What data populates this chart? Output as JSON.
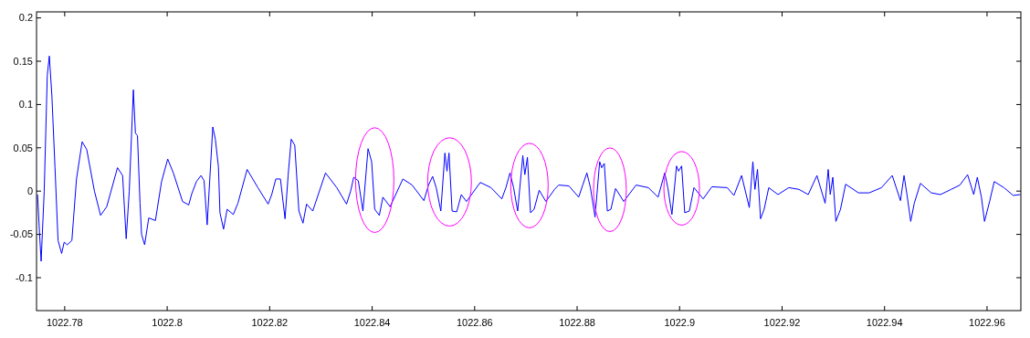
{
  "chart_data": {
    "type": "line",
    "x": [
      1022.7747,
      1022.7751,
      1022.7754,
      1022.776,
      1022.7766,
      1022.777,
      1022.7775,
      1022.7781,
      1022.7787,
      1022.7794,
      1022.7799,
      1022.7805,
      1022.7814,
      1022.7823,
      1022.7834,
      1022.7843,
      1022.7858,
      1022.787,
      1022.7882,
      1022.7903,
      1022.7913,
      1022.792,
      1022.7926,
      1022.7934,
      1022.7938,
      1022.7942,
      1022.7947,
      1022.795,
      1022.7956,
      1022.7964,
      1022.7977,
      1022.7989,
      1022.8001,
      1022.8012,
      1022.803,
      1022.8042,
      1022.8048,
      1022.8057,
      1022.8066,
      1022.8072,
      1022.8078,
      1022.8089,
      1022.8094,
      1022.81,
      1022.8103,
      1022.811,
      1022.8117,
      1022.8129,
      1022.8138,
      1022.8156,
      1022.8177,
      1022.8197,
      1022.8204,
      1022.8212,
      1022.8221,
      1022.823,
      1022.8236,
      1022.8242,
      1022.8249,
      1022.8257,
      1022.8265,
      1022.8272,
      1022.8284,
      1022.8309,
      1022.8331,
      1022.835,
      1022.8358,
      1022.8364,
      1022.8373,
      1022.8382,
      1022.8392,
      1022.8399,
      1022.8405,
      1022.8414,
      1022.8421,
      1022.8435,
      1022.846,
      1022.8478,
      1022.8501,
      1022.851,
      1022.8518,
      1022.8525,
      1022.8534,
      1022.8542,
      1022.8546,
      1022.855,
      1022.8556,
      1022.8565,
      1022.8574,
      1022.8584,
      1022.8611,
      1022.8632,
      1022.8653,
      1022.8661,
      1022.8669,
      1022.8676,
      1022.8684,
      1022.8694,
      1022.8698,
      1022.8703,
      1022.8709,
      1022.8716,
      1022.8726,
      1022.8739,
      1022.8756,
      1022.8764,
      1022.8784,
      1022.8803,
      1022.8811,
      1022.8819,
      1022.8826,
      1022.8835,
      1022.8844,
      1022.8848,
      1022.8853,
      1022.8859,
      1022.8866,
      1022.8875,
      1022.8891,
      1022.8915,
      1022.8939,
      1022.8958,
      1022.8971,
      1022.8977,
      1022.8985,
      1022.8994,
      1022.8998,
      1022.9004,
      1022.901,
      1022.9019,
      1022.9028,
      1022.9046,
      1022.9063,
      1022.9093,
      1022.9106,
      1022.9121,
      1022.9136,
      1022.9143,
      1022.9147,
      1022.9152,
      1022.9158,
      1022.9165,
      1022.9174,
      1022.9192,
      1022.9213,
      1022.9233,
      1022.9251,
      1022.9268,
      1022.9284,
      1022.929,
      1022.9294,
      1022.9299,
      1022.9305,
      1022.9314,
      1022.9324,
      1022.9349,
      1022.937,
      1022.9394,
      1022.9415,
      1022.9431,
      1022.9438,
      1022.9444,
      1022.9451,
      1022.9458,
      1022.947,
      1022.9491,
      1022.9509,
      1022.953,
      1022.9547,
      1022.9562,
      1022.9574,
      1022.9581,
      1022.9589,
      1022.9595,
      1022.9605,
      1022.9614,
      1022.9633,
      1022.9651,
      1022.9665
    ],
    "series": [
      {
        "color": "#0000ff",
        "values": [
          -0.004,
          -0.05,
          -0.081,
          0,
          0.134,
          0.156,
          0.11,
          0.028,
          -0.057,
          -0.072,
          -0.059,
          -0.062,
          -0.057,
          0.014,
          0.057,
          0.048,
          0,
          -0.028,
          -0.018,
          0.027,
          0.018,
          -0.055,
          0,
          0.117,
          0.067,
          0.064,
          -0.014,
          -0.05,
          -0.062,
          -0.031,
          -0.034,
          0.011,
          0.037,
          0.021,
          -0.012,
          -0.016,
          -0.003,
          0.011,
          0.018,
          0.012,
          -0.039,
          0.074,
          0.06,
          0.028,
          -0.025,
          -0.044,
          -0.021,
          -0.027,
          -0.014,
          0.025,
          0.004,
          -0.015,
          -0.004,
          0.014,
          0.014,
          -0.032,
          0.018,
          0.06,
          0.053,
          -0.023,
          -0.037,
          -0.015,
          -0.023,
          0.021,
          0.004,
          -0.015,
          0,
          0.016,
          0.012,
          -0.023,
          0.049,
          0.034,
          -0.021,
          -0.028,
          -0.007,
          -0.018,
          0.014,
          0.007,
          -0.011,
          0.007,
          0.017,
          0.004,
          -0.023,
          0.044,
          0.023,
          0.044,
          -0.023,
          -0.024,
          -0.004,
          -0.012,
          0.01,
          0.004,
          -0.009,
          0.004,
          0.021,
          0.004,
          -0.023,
          0.041,
          0.019,
          0.039,
          -0.025,
          -0.021,
          0.001,
          -0.012,
          0.002,
          0.007,
          0.006,
          -0.007,
          0.007,
          0.021,
          0.004,
          -0.03,
          0.034,
          0.027,
          0.032,
          -0.023,
          -0.021,
          0.003,
          -0.012,
          0.007,
          0.004,
          -0.007,
          0.021,
          0.004,
          -0.027,
          0.029,
          0.023,
          0.029,
          -0.025,
          -0.023,
          0.004,
          -0.009,
          0.005,
          0.004,
          -0.005,
          0.018,
          -0.019,
          0.034,
          0.002,
          0.025,
          -0.032,
          -0.021,
          0.004,
          -0.004,
          0.004,
          0.002,
          -0.004,
          0.018,
          -0.014,
          0.025,
          -0.004,
          0.016,
          -0.035,
          -0.021,
          0.008,
          -0.002,
          -0.002,
          0.004,
          0.018,
          -0.011,
          0.018,
          -0.005,
          -0.035,
          -0.014,
          0.009,
          -0.002,
          -0.004,
          0.002,
          0.007,
          0.019,
          -0.004,
          0.016,
          -0.007,
          -0.035,
          -0.012,
          0.011,
          0.004,
          -0.005,
          -0.004
        ]
      }
    ],
    "xlim": [
      1022.7745,
      1022.9666
    ],
    "xticks": [
      1022.78,
      1022.8,
      1022.82,
      1022.84,
      1022.86,
      1022.88,
      1022.9,
      1022.92,
      1022.94,
      1022.96
    ],
    "ylim": [
      -0.138,
      0.207
    ],
    "yticks": [
      -0.1,
      -0.05,
      0,
      0.05,
      0.1,
      0.15,
      0.2
    ],
    "grid": false,
    "marker": "none",
    "line_style": "solid"
  }
}
